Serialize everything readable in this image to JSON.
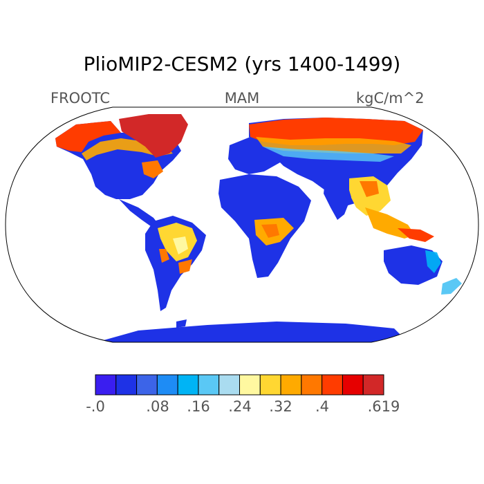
{
  "title": "PlioMIP2-CESM2 (yrs 1400-1499)",
  "subtitle_left": "FROOTC",
  "subtitle_center": "MAM",
  "subtitle_right": "kgC/m^2",
  "colorbar": {
    "colors": [
      "#3a1ef0",
      "#1e32e6",
      "#3c64e8",
      "#1e8cf5",
      "#00b4f5",
      "#5ac8f5",
      "#aadcf0",
      "#fff8a0",
      "#ffd732",
      "#ffaa00",
      "#ff7800",
      "#ff3c00",
      "#e60000",
      "#d22828"
    ],
    "labels": [
      "-.0",
      ".08",
      ".16",
      ".24",
      ".32",
      ".4",
      ".619"
    ]
  }
}
